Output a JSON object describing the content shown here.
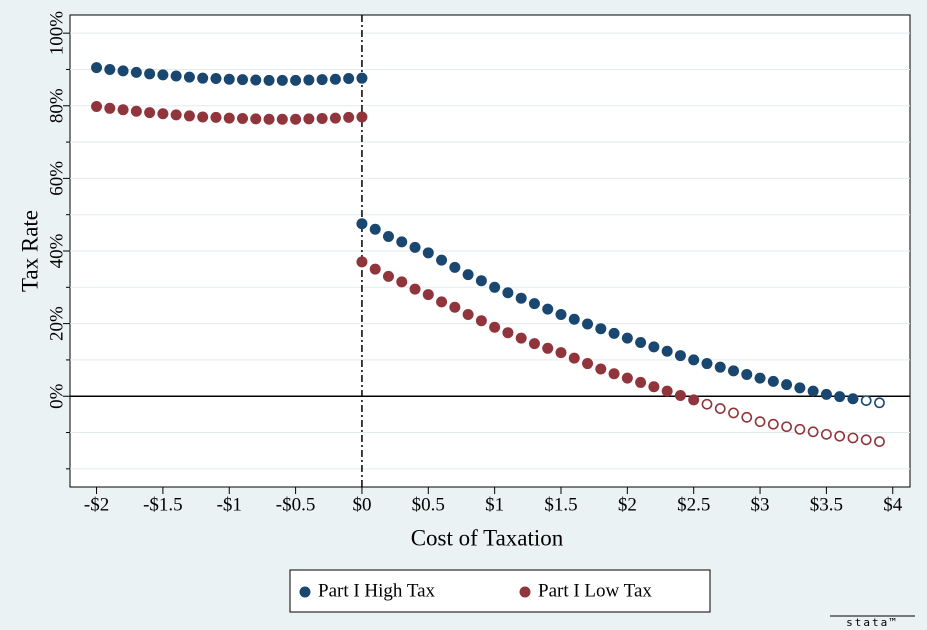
{
  "chart_data": {
    "type": "scatter",
    "x_label": "Cost of Taxation",
    "y_label": "Tax Rate",
    "watermark": "stata™",
    "x": [
      -2,
      -1.9,
      -1.8,
      -1.7,
      -1.6,
      -1.5,
      -1.4,
      -1.3,
      -1.2,
      -1.1,
      -1,
      -0.9,
      -0.8,
      -0.7,
      -0.6,
      -0.5,
      -0.4,
      -0.3,
      -0.2,
      -0.1,
      0,
      0,
      0.1,
      0.2,
      0.3,
      0.4,
      0.5,
      0.6,
      0.7,
      0.8,
      0.9,
      1,
      1.1,
      1.2,
      1.3,
      1.4,
      1.5,
      1.6,
      1.7,
      1.8,
      1.9,
      2,
      2.1,
      2.2,
      2.3,
      2.4,
      2.5,
      2.6,
      2.7,
      2.8,
      2.9,
      3,
      3.1,
      3.2,
      3.3,
      3.4,
      3.5,
      3.6,
      3.7,
      3.8,
      3.9
    ],
    "series": [
      {
        "name": "Part I High Tax",
        "color": "#1a476f",
        "hollow_from_x": 3.8,
        "values": [
          90.5,
          90.0,
          89.6,
          89.2,
          88.8,
          88.5,
          88.2,
          87.9,
          87.6,
          87.5,
          87.3,
          87.2,
          87.1,
          87.0,
          87.0,
          87.0,
          87.1,
          87.2,
          87.3,
          87.5,
          87.6,
          47.5,
          46,
          44,
          42.5,
          41,
          39.5,
          37.5,
          35.5,
          33.5,
          31.8,
          30,
          28.5,
          27,
          25.5,
          24,
          22.5,
          21.2,
          19.9,
          18.6,
          17.3,
          16,
          14.8,
          13.6,
          12.4,
          11.2,
          10,
          9,
          8,
          7,
          6,
          5,
          4.1,
          3.2,
          2.3,
          1.4,
          0.5,
          -0.1,
          -0.7,
          -1.2,
          -1.8
        ]
      },
      {
        "name": "Part I Low Tax",
        "color": "#90353b",
        "hollow_from_x": 2.6,
        "values": [
          79.8,
          79.3,
          78.9,
          78.5,
          78.1,
          77.8,
          77.5,
          77.2,
          76.9,
          76.8,
          76.6,
          76.5,
          76.4,
          76.3,
          76.3,
          76.3,
          76.4,
          76.5,
          76.6,
          76.8,
          76.9,
          37,
          35,
          33,
          31.5,
          29.5,
          28,
          26,
          24.5,
          22.5,
          20.8,
          19,
          17.5,
          16,
          14.5,
          13.2,
          12,
          10.5,
          9,
          7.5,
          6.2,
          5,
          3.8,
          2.6,
          1.4,
          0.2,
          -1,
          -2.2,
          -3.4,
          -4.6,
          -5.8,
          -7,
          -7.7,
          -8.4,
          -9.1,
          -9.8,
          -10.5,
          -11,
          -11.5,
          -12,
          -12.5
        ]
      }
    ],
    "xlim": [
      -2.2,
      4.13
    ],
    "ylim": [
      -25,
      105
    ],
    "xticks": [
      {
        "value": -2,
        "label": "-$2"
      },
      {
        "value": -1.5,
        "label": "-$1.5"
      },
      {
        "value": -1,
        "label": "-$1"
      },
      {
        "value": -0.5,
        "label": "-$0.5"
      },
      {
        "value": 0,
        "label": "$0"
      },
      {
        "value": 0.5,
        "label": "$0.5"
      },
      {
        "value": 1,
        "label": "$1"
      },
      {
        "value": 1.5,
        "label": "$1.5"
      },
      {
        "value": 2,
        "label": "$2"
      },
      {
        "value": 2.5,
        "label": "$2.5"
      },
      {
        "value": 3,
        "label": "$3"
      },
      {
        "value": 3.5,
        "label": "$3.5"
      },
      {
        "value": 4,
        "label": "$4"
      }
    ],
    "yticks": [
      {
        "value": 0,
        "label": "0%"
      },
      {
        "value": 20,
        "label": "20%"
      },
      {
        "value": 40,
        "label": "40%"
      },
      {
        "value": 60,
        "label": "60%"
      },
      {
        "value": 80,
        "label": "80%"
      },
      {
        "value": 100,
        "label": "100%"
      }
    ],
    "yminorticks": [
      -20,
      -10,
      10,
      30,
      50,
      70,
      90
    ],
    "grid": true,
    "hline": 0,
    "vline": 0,
    "legend": "bottom"
  }
}
